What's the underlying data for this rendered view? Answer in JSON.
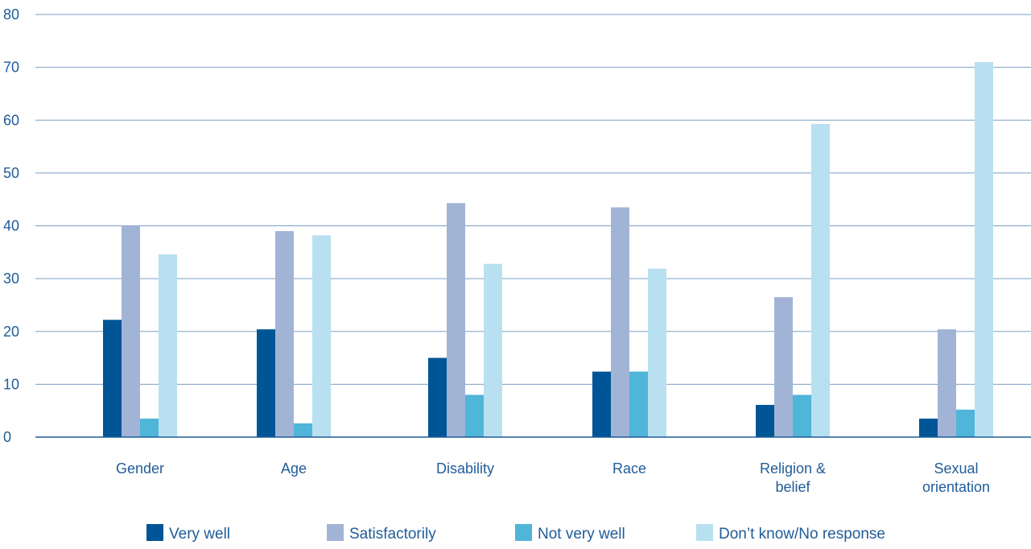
{
  "chart_data": {
    "type": "bar",
    "title": "",
    "xlabel": "",
    "ylabel": "",
    "ylim": [
      0,
      80
    ],
    "yticks": [
      0,
      10,
      20,
      30,
      40,
      50,
      60,
      70,
      80
    ],
    "grid": true,
    "legend_position": "bottom",
    "categories": [
      [
        "Gender"
      ],
      [
        "Age"
      ],
      [
        "Disability"
      ],
      [
        "Race"
      ],
      [
        "Religion &",
        "belief"
      ],
      [
        "Sexual",
        "orientation"
      ]
    ],
    "series": [
      {
        "name": "Very well",
        "color": "#005596",
        "values": [
          22.2,
          20.4,
          15.0,
          12.4,
          6.1,
          3.5
        ]
      },
      {
        "name": "Satisfactorily",
        "color": "#a2b4d6",
        "values": [
          40.0,
          39.0,
          44.3,
          43.5,
          26.5,
          20.4
        ]
      },
      {
        "name": "Not very well",
        "color": "#4fb5d9",
        "values": [
          3.5,
          2.6,
          8.0,
          12.4,
          8.0,
          5.2
        ]
      },
      {
        "name": "Don’t know/No response",
        "color": "#b9e0f1",
        "values": [
          34.6,
          38.2,
          32.8,
          31.9,
          59.3,
          71.0
        ]
      }
    ]
  }
}
